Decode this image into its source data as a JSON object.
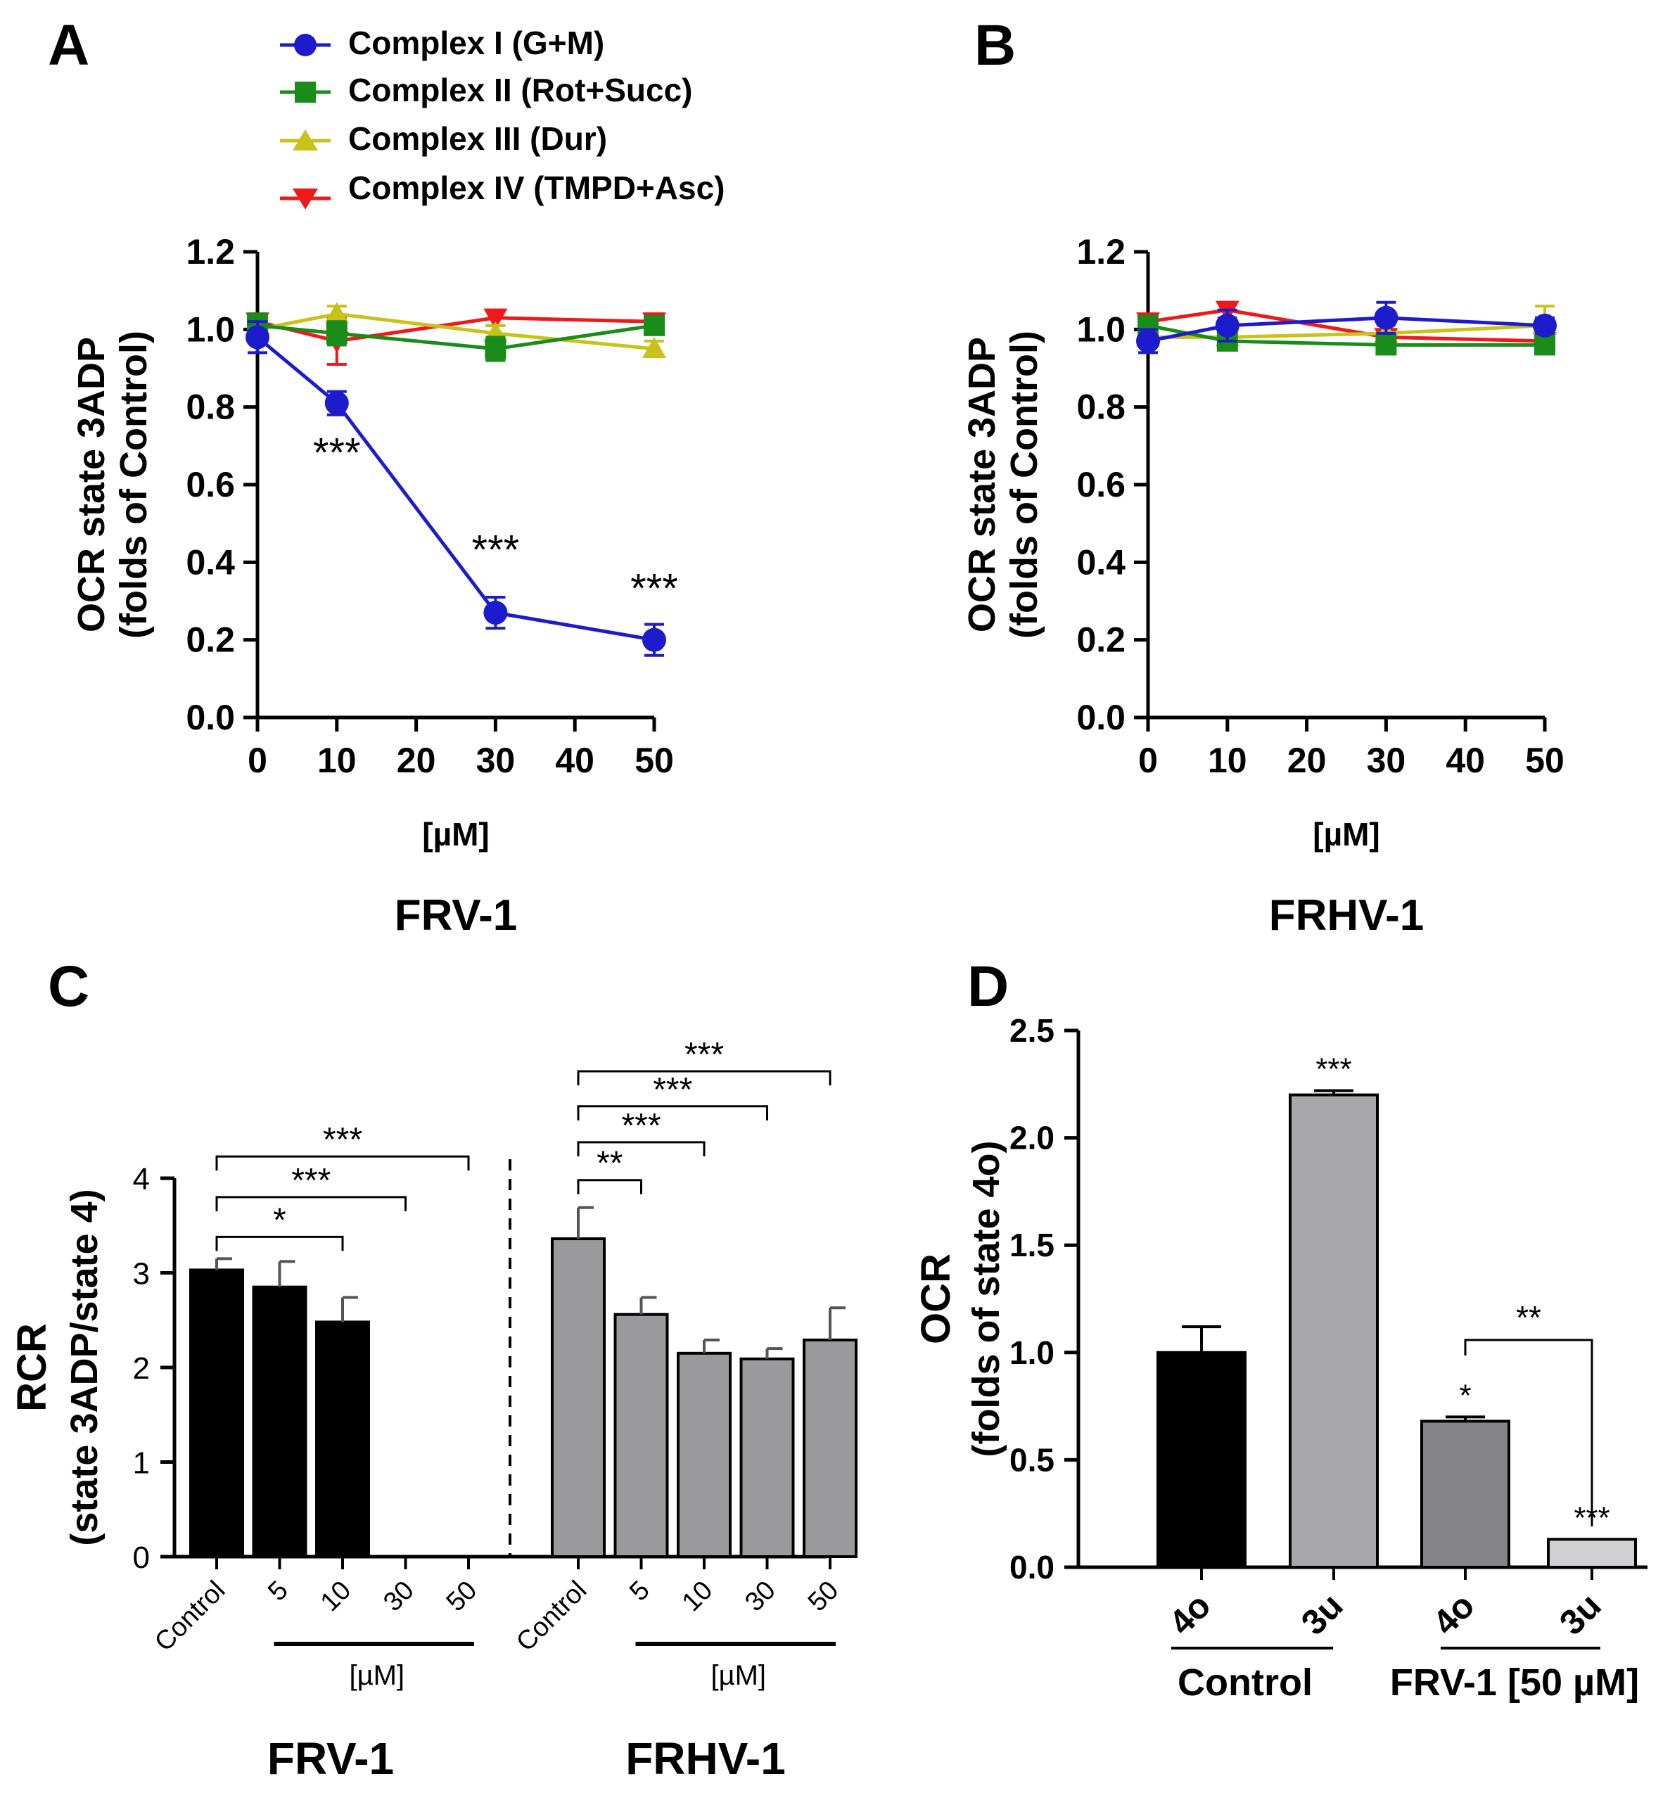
{
  "panel_letters": {
    "A": "A",
    "B": "B",
    "C": "C",
    "D": "D"
  },
  "legend": [
    {
      "label": "Complex I (G+M)",
      "color": "#1c1ccc",
      "marker": "circle"
    },
    {
      "label": "Complex II (Rot+Succ)",
      "color": "#1a8c1a",
      "marker": "square"
    },
    {
      "label": "Complex III (Dur)",
      "color": "#c8c21a",
      "marker": "triangle-up"
    },
    {
      "label": "Complex IV (TMPD+Asc)",
      "color": "#f01818",
      "marker": "triangle-down"
    }
  ],
  "chart_data": [
    {
      "panel": "A",
      "type": "line",
      "title": "FRV-1",
      "xlabel": "[µM]",
      "ylabel": [
        "OCR state 3ADP",
        "(folds of Control)"
      ],
      "xlim": [
        0,
        50
      ],
      "ylim": [
        0,
        1.2
      ],
      "xticks": [
        "0",
        "10",
        "20",
        "30",
        "40",
        "50"
      ],
      "yticks": [
        "0.0",
        "0.2",
        "0.4",
        "0.6",
        "0.8",
        "1.0",
        "1.2"
      ],
      "x": [
        0,
        10,
        30,
        50
      ],
      "series": [
        {
          "name": "Complex I (G+M)",
          "values": [
            0.98,
            0.81,
            0.27,
            0.2
          ],
          "err": [
            0.04,
            0.03,
            0.04,
            0.04
          ]
        },
        {
          "name": "Complex II (Rot+Succ)",
          "values": [
            1.01,
            0.99,
            0.95,
            1.01
          ],
          "err": [
            0.03,
            0.03,
            0.03,
            0.02
          ]
        },
        {
          "name": "Complex III (Dur)",
          "values": [
            1.0,
            1.04,
            0.99,
            0.95
          ],
          "err": [
            0.02,
            0.02,
            0.02,
            0.02
          ]
        },
        {
          "name": "Complex IV (TMPD+Asc)",
          "values": [
            1.02,
            0.97,
            1.03,
            1.02
          ],
          "err": [
            0.02,
            0.06,
            0.02,
            0.02
          ]
        }
      ],
      "annotations": [
        {
          "x": 10,
          "y": 0.69,
          "text": "***"
        },
        {
          "x": 30,
          "y": 0.44,
          "text": "***"
        },
        {
          "x": 50,
          "y": 0.34,
          "text": "***"
        }
      ]
    },
    {
      "panel": "B",
      "type": "line",
      "title": "FRHV-1",
      "xlabel": "[µM]",
      "ylabel": [
        "OCR state 3ADP",
        "(folds of Control)"
      ],
      "xlim": [
        0,
        50
      ],
      "ylim": [
        0,
        1.2
      ],
      "xticks": [
        "0",
        "10",
        "20",
        "30",
        "40",
        "50"
      ],
      "yticks": [
        "0.0",
        "0.2",
        "0.4",
        "0.6",
        "0.8",
        "1.0",
        "1.2"
      ],
      "x": [
        0,
        10,
        30,
        50
      ],
      "series": [
        {
          "name": "Complex I (G+M)",
          "values": [
            0.97,
            1.01,
            1.03,
            1.01
          ],
          "err": [
            0.03,
            0.04,
            0.04,
            0.02
          ]
        },
        {
          "name": "Complex II (Rot+Succ)",
          "values": [
            1.01,
            0.97,
            0.96,
            0.96
          ],
          "err": [
            0.02,
            0.02,
            0.02,
            0.02
          ]
        },
        {
          "name": "Complex III (Dur)",
          "values": [
            0.98,
            0.98,
            0.99,
            1.01
          ],
          "err": [
            0.02,
            0.02,
            0.02,
            0.05
          ]
        },
        {
          "name": "Complex IV (TMPD+Asc)",
          "values": [
            1.02,
            1.05,
            0.98,
            0.97
          ],
          "err": [
            0.02,
            0.02,
            0.02,
            0.02
          ]
        }
      ]
    },
    {
      "panel": "C",
      "type": "bar",
      "ylabel": [
        "RCR",
        "(state 3ADP/state 4)"
      ],
      "ylim": [
        0,
        4
      ],
      "yticks": [
        "0",
        "1",
        "2",
        "3",
        "4"
      ],
      "unit_label": "[µM]",
      "groups": [
        {
          "name": "FRV-1",
          "color": "#000000",
          "categories": [
            "Control",
            "5",
            "10",
            "30",
            "50"
          ],
          "values": [
            3.03,
            2.85,
            2.48,
            0,
            0
          ],
          "err": [
            0.12,
            0.27,
            0.26,
            0,
            0
          ],
          "brackets": [
            {
              "from": 0,
              "to": 2,
              "y": 3.38,
              "text": "*"
            },
            {
              "from": 0,
              "to": 3,
              "y": 3.8,
              "text": "***"
            },
            {
              "from": 0,
              "to": 4,
              "y": 4.23,
              "text": "***"
            }
          ]
        },
        {
          "name": "FRHV-1",
          "color": "#9a9a9c",
          "categories": [
            "Control",
            "5",
            "10",
            "30",
            "50"
          ],
          "values": [
            3.36,
            2.56,
            2.15,
            2.09,
            2.29
          ],
          "err": [
            0.33,
            0.18,
            0.14,
            0.11,
            0.34
          ],
          "brackets": [
            {
              "from": 0,
              "to": 1,
              "y": 3.98,
              "text": "**"
            },
            {
              "from": 0,
              "to": 2,
              "y": 4.38,
              "text": "***"
            },
            {
              "from": 0,
              "to": 3,
              "y": 4.76,
              "text": "***"
            },
            {
              "from": 0,
              "to": 4,
              "y": 5.13,
              "text": "***"
            }
          ]
        }
      ]
    },
    {
      "panel": "D",
      "type": "bar",
      "ylabel": [
        "OCR",
        "(folds of state 4o)"
      ],
      "ylim": [
        0,
        2.5
      ],
      "yticks": [
        "0.0",
        "0.5",
        "1.0",
        "1.5",
        "2.0",
        "2.5"
      ],
      "categories": [
        "4o",
        "3u",
        "4o",
        "3u"
      ],
      "values": [
        1.0,
        2.2,
        0.68,
        0.13
      ],
      "err": [
        0.12,
        0.02,
        0.02,
        0.0
      ],
      "colors": [
        "#000000",
        "#a8a8aa",
        "#858587",
        "#d0d0d2"
      ],
      "stars": [
        "",
        "***",
        "*",
        "***"
      ],
      "group_labels": [
        "Control",
        "FRV-1 [50 µM]"
      ],
      "bracket": {
        "from": 2,
        "to": 3,
        "y": 1.0,
        "text": "**"
      }
    }
  ]
}
